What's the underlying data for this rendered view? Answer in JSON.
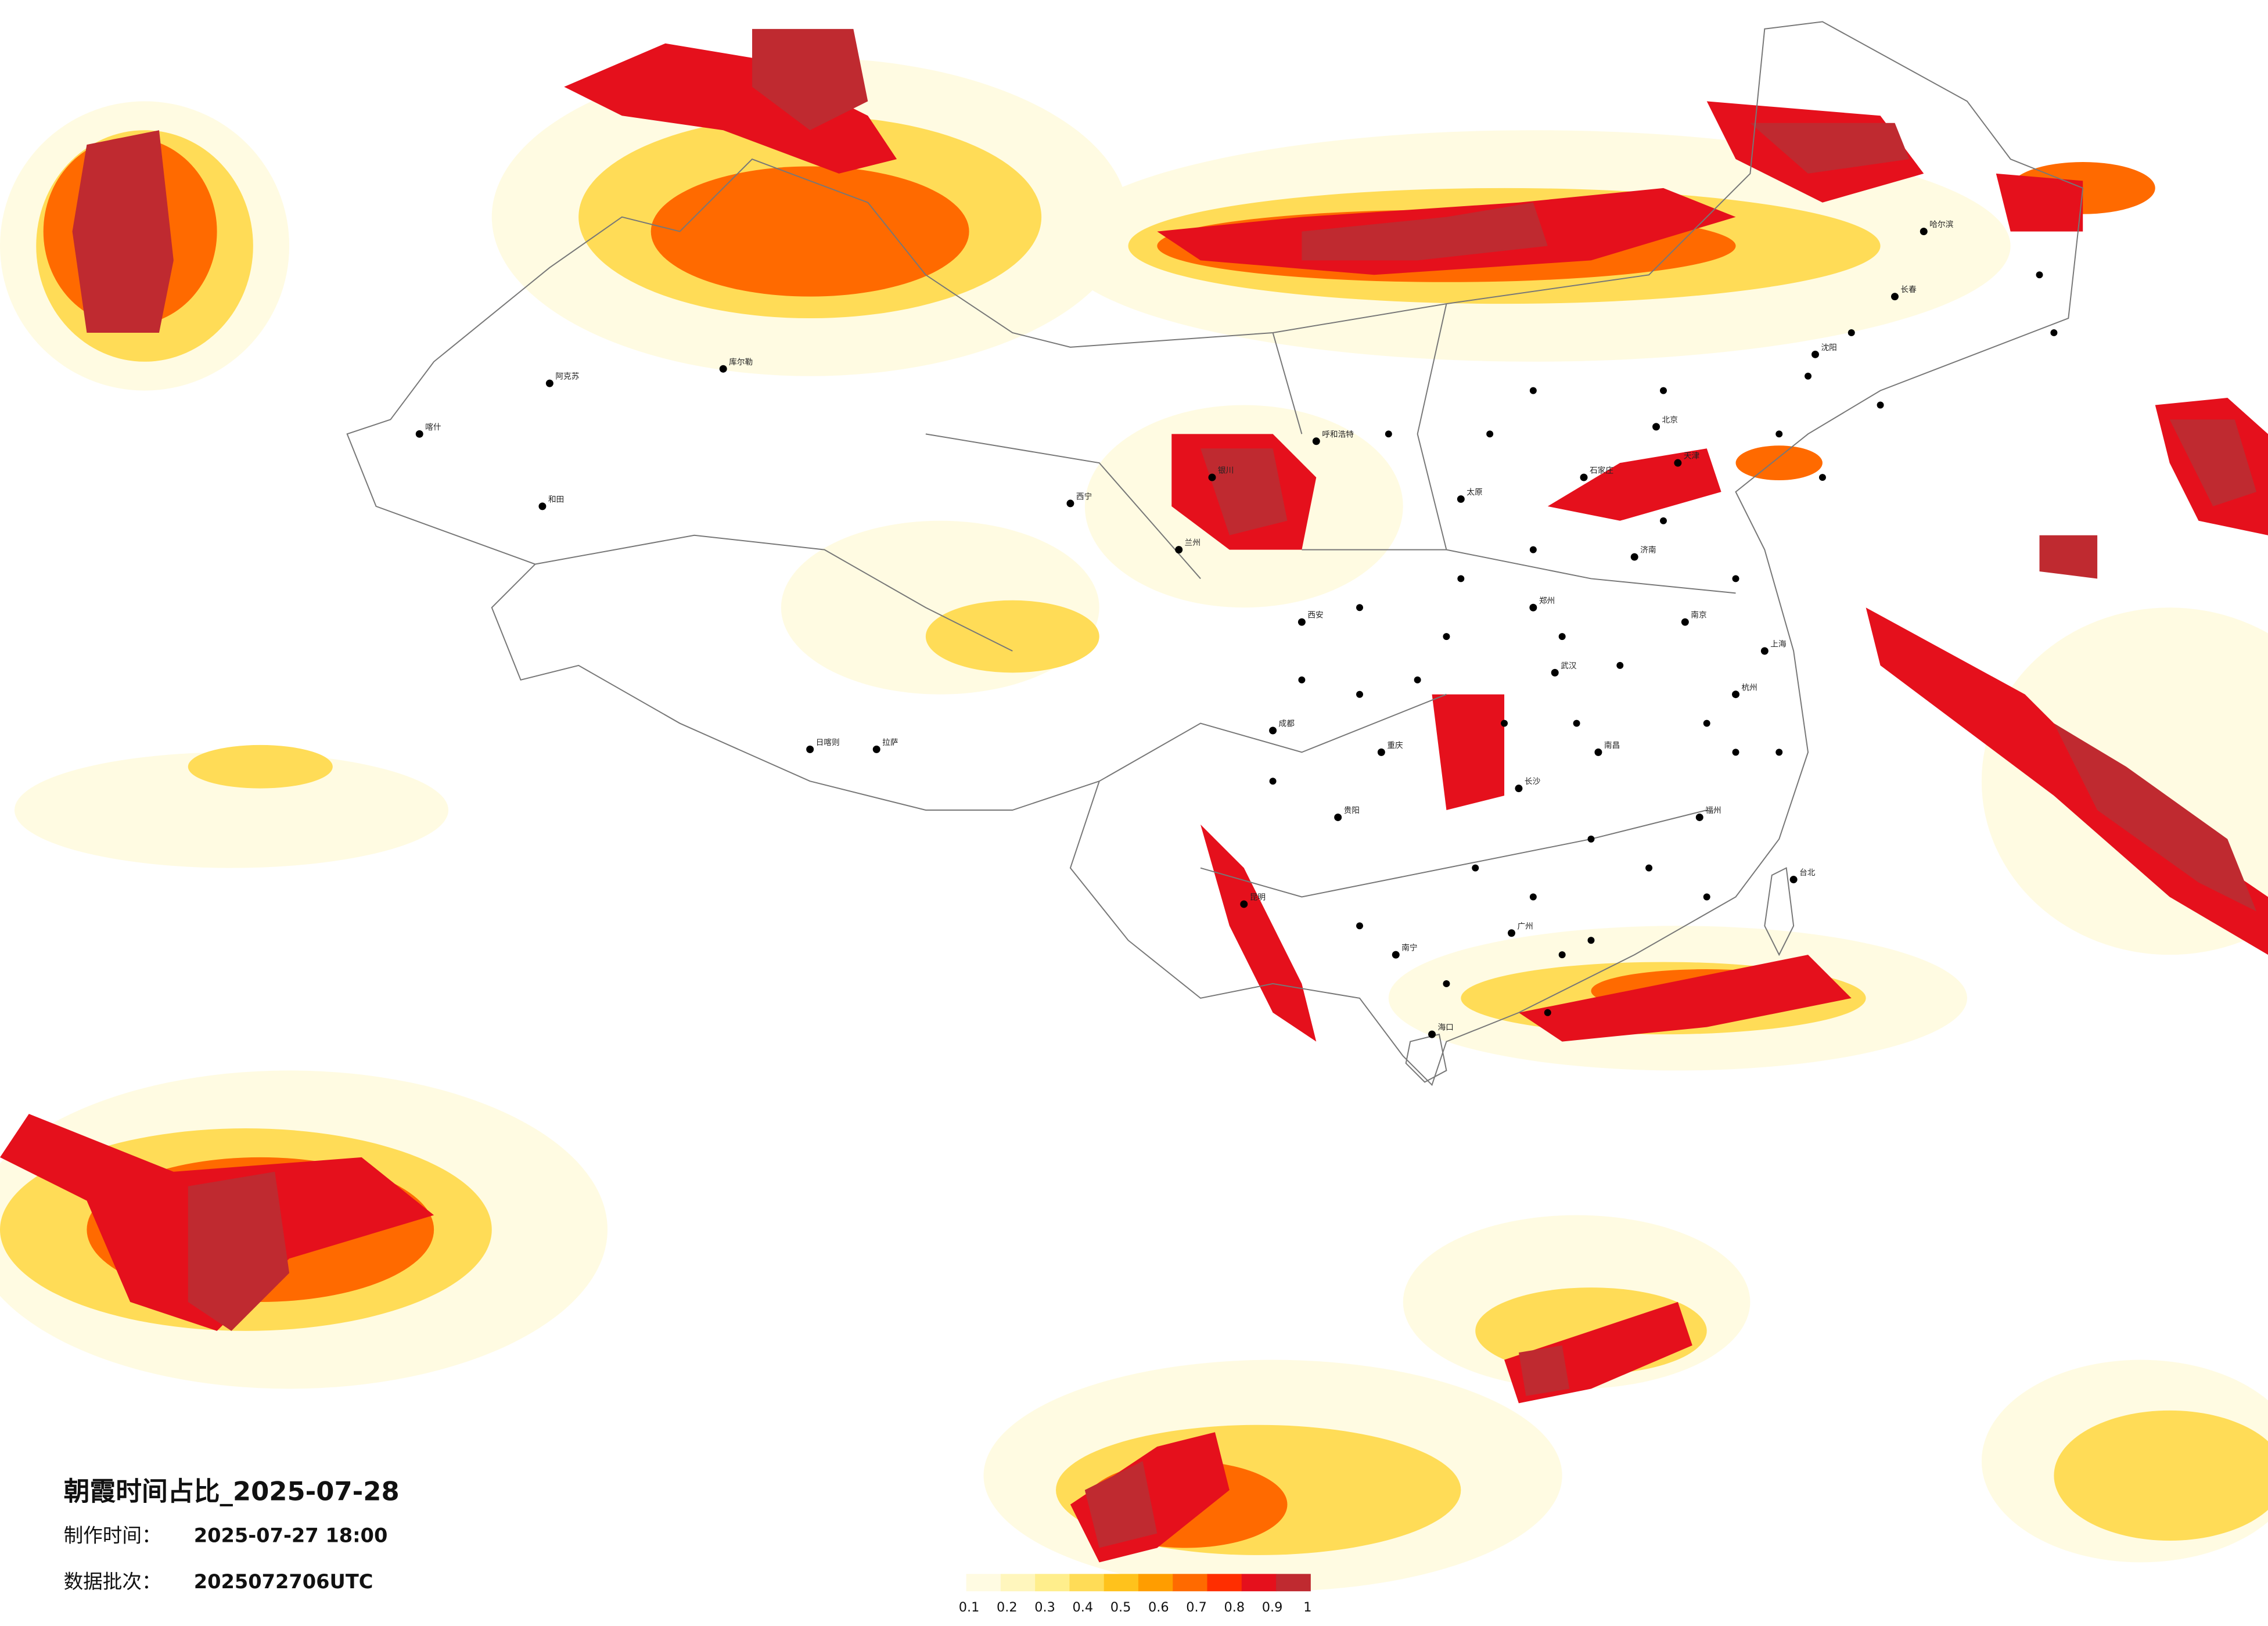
{
  "header": {
    "title": "朝霞时间占比_2025-07-28",
    "made_label": "制作时间：",
    "made_value": "2025-07-27 18:00",
    "batch_label": "数据批次：",
    "batch_value": "2025072706UTC"
  },
  "legend": {
    "ticks": [
      0.1,
      0.2,
      0.3,
      0.4,
      0.5,
      0.6,
      0.7,
      0.8,
      0.9,
      1
    ],
    "colors": [
      "#fffbe2",
      "#fff6bd",
      "#ffee8c",
      "#ffdc57",
      "#ffc21c",
      "#ff9d00",
      "#ff6a00",
      "#ff2e00",
      "#e5101c",
      "#bf2a30"
    ]
  },
  "cities": [
    "喀什",
    "阿克苏",
    "和田",
    "库尔勒",
    "日喀则",
    "拉萨",
    "西宁",
    "兰州",
    "银川",
    "呼和浩特",
    "北京",
    "天津",
    "石家庄",
    "太原",
    "济南",
    "郑州",
    "西安",
    "成都",
    "重庆",
    "贵阳",
    "昆明",
    "南宁",
    "海口",
    "广州",
    "长沙",
    "武汉",
    "南昌",
    "南京",
    "上海",
    "杭州",
    "福州",
    "台北",
    "沈阳",
    "长春",
    "哈尔滨"
  ]
}
